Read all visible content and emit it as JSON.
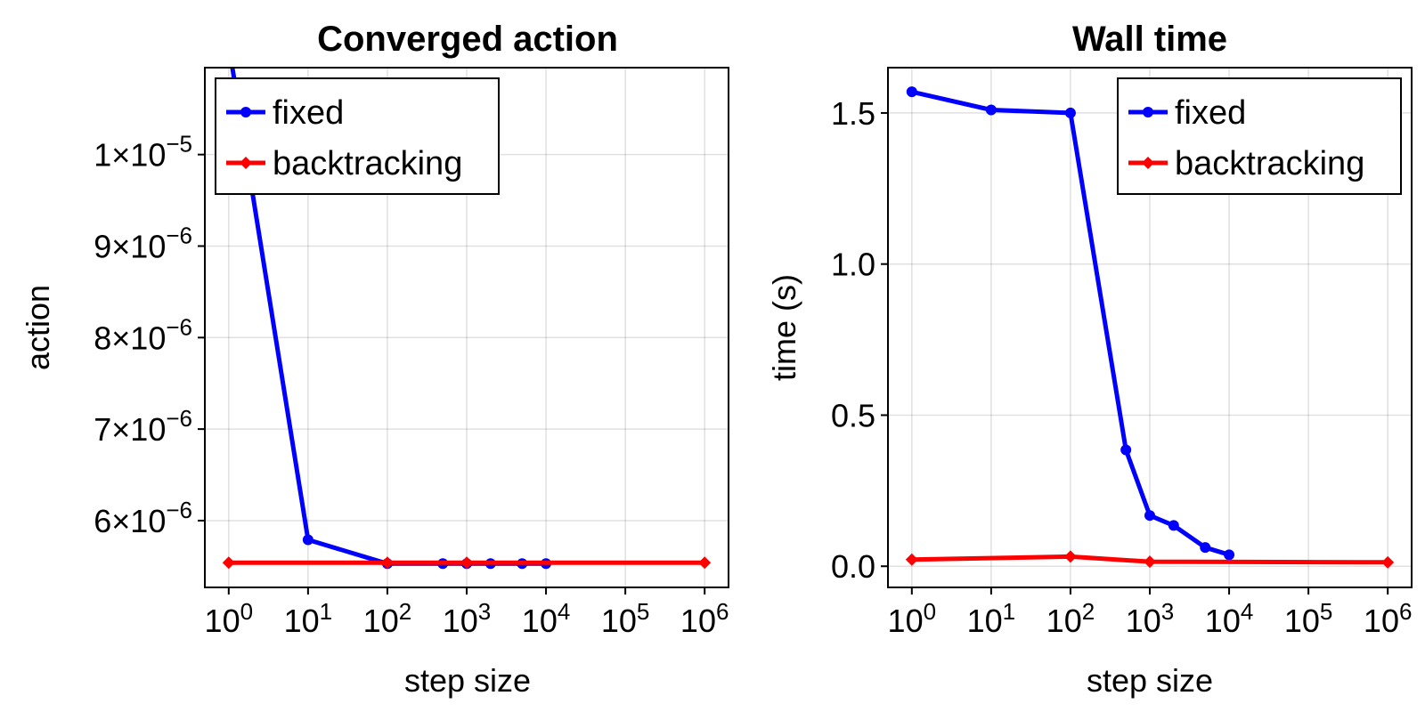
{
  "chart_data": [
    {
      "type": "line",
      "title": "Converged action",
      "xlabel": "step size",
      "ylabel": "action",
      "xscale": "log",
      "xlim": [
        0.5,
        2000000
      ],
      "ylim": [
        5.27e-06,
        1.095e-05
      ],
      "xticks": [
        {
          "value": 1,
          "label": "10",
          "sup": "0"
        },
        {
          "value": 10,
          "label": "10",
          "sup": "1"
        },
        {
          "value": 100,
          "label": "10",
          "sup": "2"
        },
        {
          "value": 1000,
          "label": "10",
          "sup": "3"
        },
        {
          "value": 10000,
          "label": "10",
          "sup": "4"
        },
        {
          "value": 100000,
          "label": "10",
          "sup": "5"
        },
        {
          "value": 1000000,
          "label": "10",
          "sup": "6"
        }
      ],
      "yticks": [
        {
          "value": 6e-06,
          "label": "6×10",
          "sup": "−6"
        },
        {
          "value": 7e-06,
          "label": "7×10",
          "sup": "−6"
        },
        {
          "value": 8e-06,
          "label": "8×10",
          "sup": "−6"
        },
        {
          "value": 9e-06,
          "label": "9×10",
          "sup": "−6"
        },
        {
          "value": 1e-05,
          "label": "1×10",
          "sup": "−5"
        }
      ],
      "grid": true,
      "legend": "top-left",
      "series": [
        {
          "name": "fixed",
          "color": "#0000ff",
          "marker": "circle",
          "x": [
            1,
            10,
            100,
            500,
            1000,
            2000,
            5000,
            10000
          ],
          "y": [
            1.12e-05,
            5.79e-06,
            5.53e-06,
            5.53e-06,
            5.53e-06,
            5.53e-06,
            5.53e-06,
            5.53e-06
          ]
        },
        {
          "name": "backtracking",
          "color": "#ff0000",
          "marker": "diamond",
          "x": [
            1,
            100,
            1000,
            1000000
          ],
          "y": [
            5.54e-06,
            5.54e-06,
            5.54e-06,
            5.54e-06
          ]
        }
      ]
    },
    {
      "type": "line",
      "title": "Wall time",
      "xlabel": "step size",
      "ylabel": "time (s)",
      "xscale": "log",
      "xlim": [
        0.5,
        2000000
      ],
      "ylim": [
        -0.07,
        1.65
      ],
      "xticks": [
        {
          "value": 1,
          "label": "10",
          "sup": "0"
        },
        {
          "value": 10,
          "label": "10",
          "sup": "1"
        },
        {
          "value": 100,
          "label": "10",
          "sup": "2"
        },
        {
          "value": 1000,
          "label": "10",
          "sup": "3"
        },
        {
          "value": 10000,
          "label": "10",
          "sup": "4"
        },
        {
          "value": 100000,
          "label": "10",
          "sup": "5"
        },
        {
          "value": 1000000,
          "label": "10",
          "sup": "6"
        }
      ],
      "yticks": [
        {
          "value": 0.0,
          "label": "0.0",
          "sup": ""
        },
        {
          "value": 0.5,
          "label": "0.5",
          "sup": ""
        },
        {
          "value": 1.0,
          "label": "1.0",
          "sup": ""
        },
        {
          "value": 1.5,
          "label": "1.5",
          "sup": ""
        }
      ],
      "grid": true,
      "legend": "top-right",
      "series": [
        {
          "name": "fixed",
          "color": "#0000ff",
          "marker": "circle",
          "x": [
            1,
            10,
            100,
            500,
            1000,
            2000,
            5000,
            10000
          ],
          "y": [
            1.57,
            1.51,
            1.5,
            0.385,
            0.168,
            0.135,
            0.062,
            0.038
          ]
        },
        {
          "name": "backtracking",
          "color": "#ff0000",
          "marker": "diamond",
          "x": [
            1,
            100,
            1000,
            1000000
          ],
          "y": [
            0.022,
            0.032,
            0.015,
            0.013
          ]
        }
      ]
    }
  ]
}
